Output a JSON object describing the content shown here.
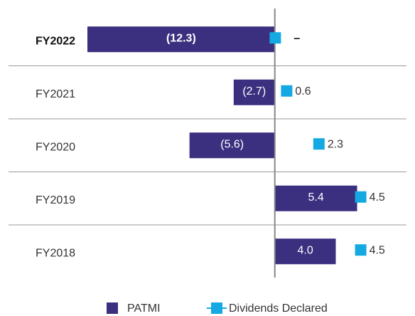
{
  "chart_data": {
    "type": "bar",
    "categories": [
      "FY2022",
      "FY2021",
      "FY2020",
      "FY2019",
      "FY2018"
    ],
    "xlim": [
      -12.3,
      8.5
    ],
    "x2lim": [
      -9.9,
      6.8
    ],
    "series": [
      {
        "name": "PATMI",
        "color": "#3b2f7f",
        "values": [
          -12.3,
          -2.7,
          -5.6,
          5.4,
          4.0
        ],
        "value_labels": [
          "(12.3)",
          "(2.7)",
          "(5.6)",
          "5.4",
          "4.0"
        ]
      },
      {
        "name": "Dividends Declared",
        "color": "#14a9e2",
        "axis": "x2",
        "values": [
          0,
          0.6,
          2.3,
          4.5,
          4.5
        ],
        "value_labels": [
          "–",
          "0.6",
          "2.3",
          "4.5",
          "4.5"
        ]
      }
    ]
  }
}
